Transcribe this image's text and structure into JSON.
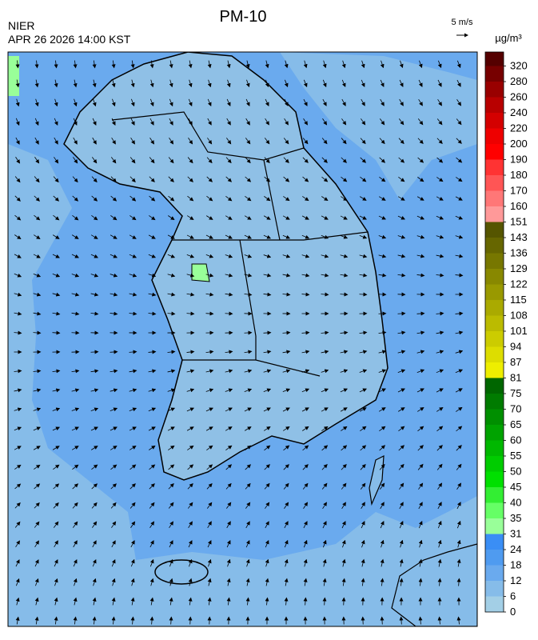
{
  "header": {
    "title": "PM-10",
    "agency": "NIER",
    "timestamp": "APR 26 2026 14:00 KST",
    "wind_scale": "5 m/s"
  },
  "colorbar": {
    "unit": "µg/m³",
    "ticks": [
      0,
      6,
      12,
      18,
      24,
      31,
      35,
      40,
      45,
      50,
      55,
      60,
      65,
      70,
      75,
      81,
      87,
      94,
      101,
      108,
      115,
      122,
      129,
      136,
      143,
      151,
      160,
      170,
      180,
      190,
      200,
      220,
      240,
      260,
      280,
      320
    ],
    "colors": [
      "#a3cfe6",
      "#86bce9",
      "#6aaaee",
      "#4f9bf0",
      "#3a8ef5",
      "#99ff99",
      "#66ff66",
      "#33ee33",
      "#00e000",
      "#00cc00",
      "#00b800",
      "#00a300",
      "#008f00",
      "#007b00",
      "#006600",
      "#eeee00",
      "#dddd00",
      "#cccc00",
      "#bbbb00",
      "#aaaa00",
      "#999900",
      "#888800",
      "#777700",
      "#666600",
      "#555500",
      "#ff9999",
      "#ff7777",
      "#ff5555",
      "#ff3333",
      "#ff0000",
      "#ee0000",
      "#d40000",
      "#b80000",
      "#990000",
      "#770000",
      "#550000"
    ]
  }
}
